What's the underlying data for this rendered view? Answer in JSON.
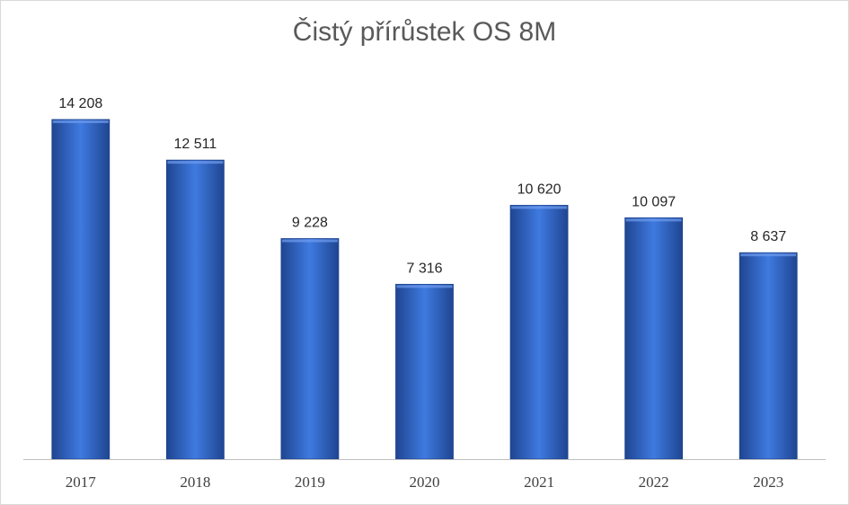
{
  "chart_data": {
    "type": "bar",
    "title": "Čistý přírůstek OS 8M",
    "xlabel": "",
    "ylabel": "",
    "categories": [
      "2017",
      "2018",
      "2019",
      "2020",
      "2021",
      "2022",
      "2023"
    ],
    "values": [
      14208,
      12511,
      9228,
      7316,
      10620,
      10097,
      8637
    ],
    "value_labels": [
      "14 208",
      "12 511",
      "9 228",
      "7 316",
      "10 620",
      "10 097",
      "8 637"
    ],
    "ylim": [
      0,
      14208
    ],
    "grid": false,
    "legend": "none",
    "colors": {
      "bar": "#2f63c4",
      "bar_light": "#3f7ae0",
      "bar_dark": "#1f4591",
      "axis": "#bfbfbf"
    }
  }
}
